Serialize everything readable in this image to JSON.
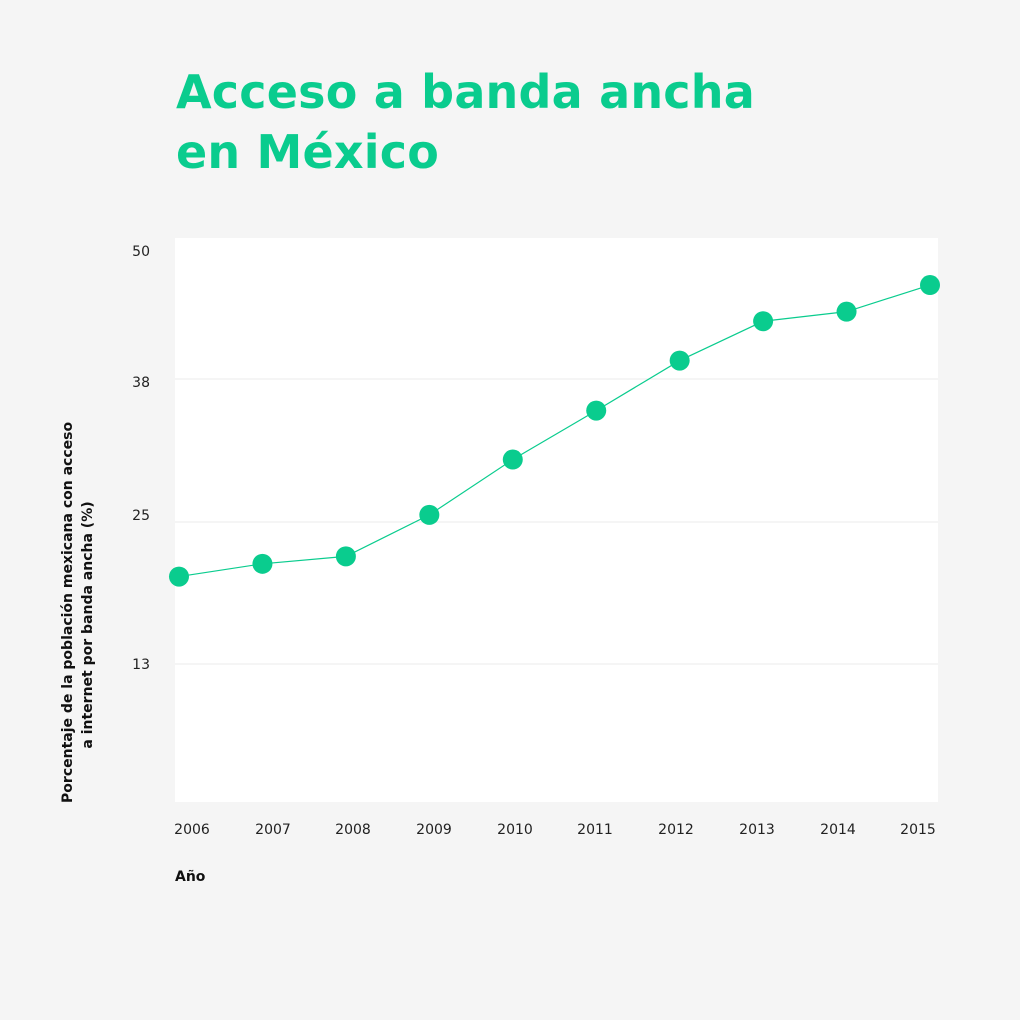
{
  "chart_data": {
    "type": "line",
    "title_lines": [
      "Acceso a banda ancha",
      "en México"
    ],
    "xlabel": "Año",
    "ylabel_lines": [
      "Porcentaje de la población mexicana con acceso",
      "a internet por banda ancha (%)"
    ],
    "x": [
      "2006",
      "2007",
      "2008",
      "2009",
      "2010",
      "2011",
      "2012",
      "2013",
      "2014",
      "2015"
    ],
    "series": [
      {
        "values": [
          19.4,
          20.6,
          21.3,
          25.2,
          30.4,
          35.0,
          39.7,
          43.4,
          44.3,
          46.8
        ]
      }
    ],
    "y_ticks": [
      "50",
      "38",
      "25",
      "13"
    ],
    "y_tick_values": [
      50,
      37.5,
      25,
      12.5
    ],
    "ylim": [
      0,
      50
    ],
    "grid": true,
    "colors": {
      "accent": "#0acc8e",
      "plot_background": "#ffffff",
      "page_background": "#f5f5f5",
      "gridline": "#ebebeb"
    }
  }
}
